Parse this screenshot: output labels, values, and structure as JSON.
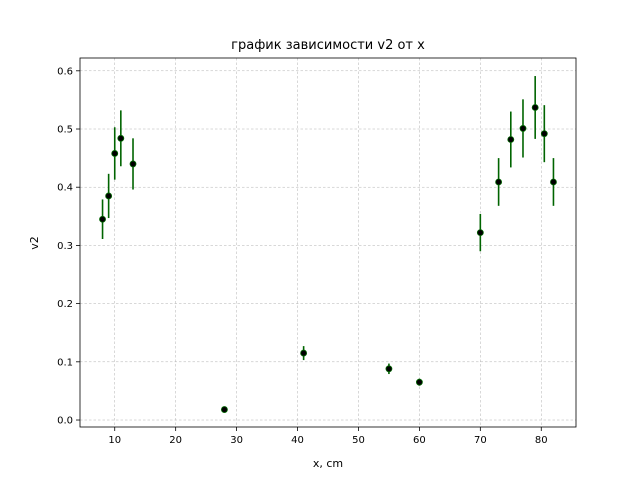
{
  "chart_data": {
    "type": "scatter",
    "title": "график зависимости v2 от x",
    "xlabel": "x, cm",
    "ylabel": "v2",
    "xlim": [
      4.3,
      85.7
    ],
    "ylim": [
      -0.012,
      0.622
    ],
    "xticks": [
      10,
      20,
      30,
      40,
      50,
      60,
      70,
      80
    ],
    "yticks": [
      0.0,
      0.1,
      0.2,
      0.3,
      0.4,
      0.5,
      0.6
    ],
    "grid": true,
    "legend": "none",
    "colors": {
      "errorbar": "#006400",
      "marker": "#000000",
      "marker_edge": "#006400"
    },
    "series": [
      {
        "points": [
          {
            "x": 8,
            "y": 0.345,
            "err": 0.034
          },
          {
            "x": 9,
            "y": 0.385,
            "err": 0.038
          },
          {
            "x": 10,
            "y": 0.458,
            "err": 0.045
          },
          {
            "x": 11,
            "y": 0.484,
            "err": 0.048
          },
          {
            "x": 13,
            "y": 0.44,
            "err": 0.044
          },
          {
            "x": 28,
            "y": 0.018,
            "err": 0.002
          },
          {
            "x": 41,
            "y": 0.115,
            "err": 0.012
          },
          {
            "x": 55,
            "y": 0.088,
            "err": 0.009
          },
          {
            "x": 60,
            "y": 0.065,
            "err": 0.006
          },
          {
            "x": 70,
            "y": 0.322,
            "err": 0.032
          },
          {
            "x": 73,
            "y": 0.409,
            "err": 0.041
          },
          {
            "x": 75,
            "y": 0.482,
            "err": 0.048
          },
          {
            "x": 77,
            "y": 0.501,
            "err": 0.05
          },
          {
            "x": 79,
            "y": 0.537,
            "err": 0.054
          },
          {
            "x": 80.5,
            "y": 0.492,
            "err": 0.049
          },
          {
            "x": 82,
            "y": 0.409,
            "err": 0.041
          }
        ]
      }
    ]
  }
}
